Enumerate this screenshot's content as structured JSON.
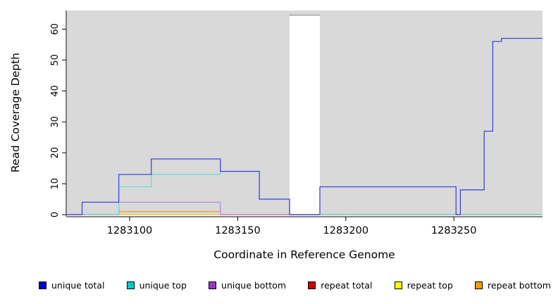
{
  "chart_data": {
    "type": "line",
    "step": "after",
    "title": "",
    "xlabel": "Coordinate in Reference Genome",
    "ylabel": "Read Coverage Depth",
    "xlim": [
      1283071,
      1283291
    ],
    "ylim": [
      0,
      66
    ],
    "xticks": [
      1283100,
      1283150,
      1283200,
      1283250
    ],
    "yticks": [
      0,
      10,
      20,
      30,
      40,
      50,
      60
    ],
    "panel_bg": "#d9d9d9",
    "axis_color": "#000000",
    "no_data_gap": {
      "from": 1283174,
      "to": 1283188,
      "top": 64.5
    },
    "series": [
      {
        "name": "repeat total",
        "color": "#cc2222",
        "points": [
          [
            1283071,
            0
          ],
          [
            1283291,
            0
          ]
        ]
      },
      {
        "name": "repeat top",
        "color": "#eeee44",
        "points": [
          [
            1283071,
            0
          ],
          [
            1283291,
            0
          ]
        ]
      },
      {
        "name": "repeat bottom",
        "color": "#ff9922",
        "points": [
          [
            1283071,
            0
          ],
          [
            1283095,
            1
          ],
          [
            1283142,
            0
          ],
          [
            1283291,
            0
          ]
        ]
      },
      {
        "name": "unique bottom",
        "color": "#bb8fe0",
        "points": [
          [
            1283071,
            0
          ],
          [
            1283095,
            4
          ],
          [
            1283142,
            0
          ],
          [
            1283291,
            0
          ]
        ]
      },
      {
        "name": "unique top",
        "color": "#6fd9d9",
        "points": [
          [
            1283071,
            0
          ],
          [
            1283095,
            9
          ],
          [
            1283110,
            13
          ],
          [
            1283142,
            14
          ],
          [
            1283160,
            5
          ],
          [
            1283174,
            0
          ],
          [
            1283291,
            0
          ]
        ]
      },
      {
        "name": "unique total",
        "color": "#4444dd",
        "points": [
          [
            1283071,
            0
          ],
          [
            1283078,
            4
          ],
          [
            1283095,
            13
          ],
          [
            1283110,
            18
          ],
          [
            1283142,
            14
          ],
          [
            1283160,
            5
          ],
          [
            1283174,
            0
          ],
          [
            1283188,
            9
          ],
          [
            1283251,
            0
          ],
          [
            1283253,
            8
          ],
          [
            1283264,
            27
          ],
          [
            1283268,
            56
          ],
          [
            1283272,
            57
          ],
          [
            1283291,
            57
          ]
        ]
      }
    ],
    "legend": {
      "position": "bottom",
      "items": [
        {
          "label": "unique total",
          "color": "#0000cc"
        },
        {
          "label": "unique top",
          "color": "#00cccc"
        },
        {
          "label": "unique bottom",
          "color": "#9933cc"
        },
        {
          "label": "repeat total",
          "color": "#cc0000"
        },
        {
          "label": "repeat top",
          "color": "#ffff00"
        },
        {
          "label": "repeat bottom",
          "color": "#ff9900"
        }
      ]
    }
  }
}
